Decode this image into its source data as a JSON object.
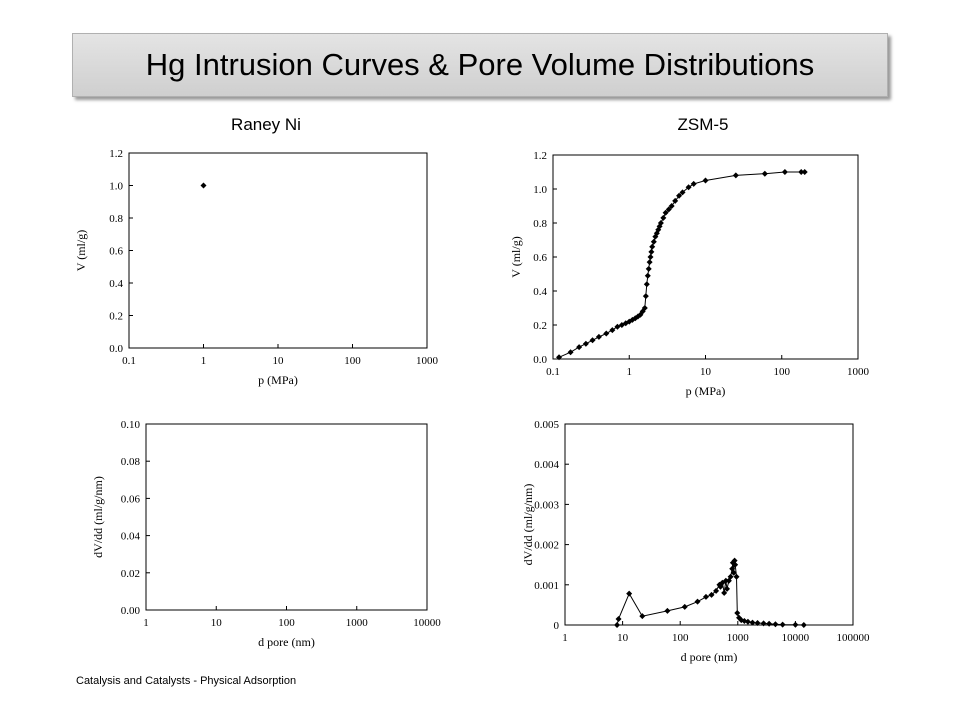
{
  "title": "Hg Intrusion Curves & Pore Volume Distributions",
  "columns": [
    "Raney Ni",
    "ZSM-5"
  ],
  "footer": "Catalysis and Catalysts - Physical Adsorption",
  "chart_data": [
    {
      "id": "raney-intrusion",
      "type": "scatter",
      "x_scale": "log",
      "xlim": [
        0.1,
        1000
      ],
      "ylim": [
        0,
        1.2
      ],
      "x_ticks": [
        "0.1",
        "1",
        "10",
        "100",
        "1000"
      ],
      "y_ticks": [
        "0.0",
        "0.2",
        "0.4",
        "0.6",
        "0.8",
        "1.0",
        "1.2"
      ],
      "xlabel": "p (MPa)",
      "ylabel": "V (ml/g)",
      "series": [
        {
          "x": [
            1
          ],
          "y": [
            1.0
          ]
        }
      ]
    },
    {
      "id": "zsm5-intrusion",
      "type": "line",
      "x_scale": "log",
      "xlim": [
        0.1,
        1000
      ],
      "ylim": [
        0,
        1.2
      ],
      "x_ticks": [
        "0.1",
        "1",
        "10",
        "100",
        "1000"
      ],
      "y_ticks": [
        "0.0",
        "0.2",
        "0.4",
        "0.6",
        "0.8",
        "1.0",
        "1.2"
      ],
      "xlabel": "p (MPa)",
      "ylabel": "V (ml/g)",
      "series": [
        {
          "x": [
            0.12,
            0.17,
            0.22,
            0.27,
            0.33,
            0.4,
            0.5,
            0.6,
            0.7,
            0.8,
            0.9,
            1.0,
            1.1,
            1.2,
            1.3,
            1.4,
            1.5,
            1.6,
            1.65,
            1.7,
            1.75,
            1.8,
            1.85,
            1.9,
            1.95,
            2.0,
            2.1,
            2.2,
            2.3,
            2.4,
            2.5,
            2.6,
            2.8,
            3.0,
            3.3,
            3.6,
            4.0,
            4.5,
            5.0,
            6.0,
            7.0,
            10,
            25,
            60,
            110,
            180,
            200
          ],
          "y": [
            0.01,
            0.04,
            0.07,
            0.09,
            0.11,
            0.13,
            0.15,
            0.17,
            0.19,
            0.2,
            0.21,
            0.22,
            0.23,
            0.24,
            0.25,
            0.26,
            0.28,
            0.3,
            0.37,
            0.44,
            0.49,
            0.53,
            0.57,
            0.6,
            0.63,
            0.66,
            0.69,
            0.72,
            0.74,
            0.76,
            0.78,
            0.8,
            0.83,
            0.86,
            0.88,
            0.9,
            0.93,
            0.96,
            0.98,
            1.01,
            1.03,
            1.05,
            1.08,
            1.09,
            1.1,
            1.1,
            1.1
          ]
        }
      ]
    },
    {
      "id": "raney-distribution",
      "type": "scatter",
      "x_scale": "log",
      "xlim": [
        1,
        10000
      ],
      "ylim": [
        0,
        0.1
      ],
      "x_ticks": [
        "1",
        "10",
        "100",
        "1000",
        "10000"
      ],
      "y_ticks": [
        "0.00",
        "0.02",
        "0.04",
        "0.06",
        "0.08",
        "0.10"
      ],
      "xlabel": "d pore (nm)",
      "ylabel": "dV/dd (ml/g/nm)",
      "series": [
        {
          "x": [],
          "y": []
        }
      ]
    },
    {
      "id": "zsm5-distribution",
      "type": "line",
      "x_scale": "log",
      "xlim": [
        1,
        100000
      ],
      "ylim": [
        0,
        0.005
      ],
      "x_ticks": [
        "1",
        "10",
        "100",
        "1000",
        "10000",
        "100000"
      ],
      "y_ticks": [
        "0",
        "0.001",
        "0.002",
        "0.003",
        "0.004",
        "0.005"
      ],
      "xlabel": "d pore (nm)",
      "ylabel": "dV/dd (ml/g/nm)",
      "series": [
        {
          "x": [
            8,
            8.5,
            13,
            22,
            60,
            120,
            200,
            280,
            350,
            420,
            480,
            500,
            540,
            580,
            620,
            650,
            700,
            750,
            800,
            820,
            850,
            880,
            900,
            950,
            980,
            1050,
            1150,
            1300,
            1500,
            1800,
            2200,
            2800,
            3500,
            4500,
            6000,
            10000,
            14000
          ],
          "y": [
            0.0,
            0.00015,
            0.00078,
            0.00022,
            0.00035,
            0.00045,
            0.00058,
            0.0007,
            0.00075,
            0.00085,
            0.001,
            0.00095,
            0.00105,
            0.0008,
            0.0011,
            0.0009,
            0.0011,
            0.0012,
            0.0014,
            0.00155,
            0.0013,
            0.0016,
            0.0015,
            0.0012,
            0.0003,
            0.00018,
            0.00012,
            0.0001,
            8e-05,
            6e-05,
            5e-05,
            4e-05,
            3e-05,
            2e-05,
            1e-05,
            5e-06,
            0.0
          ]
        }
      ]
    }
  ]
}
